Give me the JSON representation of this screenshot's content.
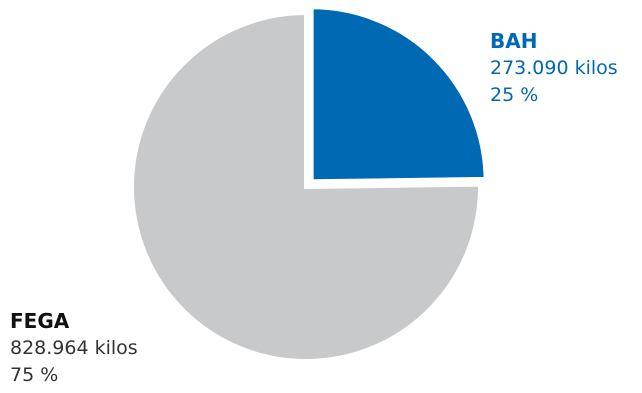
{
  "chart_data": {
    "type": "pie",
    "title": "",
    "slices": [
      {
        "name": "BAH",
        "value": 273090,
        "value_label": "273.090 kilos",
        "percent_label": "25 %",
        "percent": 25,
        "color": "#0069b4",
        "label_color": "#0069b4",
        "name_color": "#0069b4",
        "exploded": true
      },
      {
        "name": "FEGA",
        "value": 828964,
        "value_label": "828.964 kilos",
        "percent_label": "75 %",
        "percent": 75,
        "color": "#c8c9cb",
        "label_color": "#333333",
        "name_color": "#111111",
        "exploded": false
      }
    ],
    "start_angle_deg": 0,
    "direction": "clockwise",
    "legend": "none"
  }
}
